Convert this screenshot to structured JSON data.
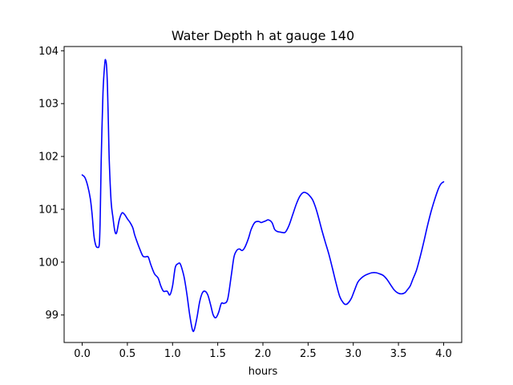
{
  "chart_data": {
    "type": "line",
    "title": "Water Depth h at gauge 140",
    "xlabel": "hours",
    "ylabel": "",
    "xlim": [
      -0.2,
      4.2
    ],
    "ylim": [
      98.48,
      104.08
    ],
    "x_ticks": [
      0.0,
      0.5,
      1.0,
      1.5,
      2.0,
      2.5,
      3.0,
      3.5,
      4.0
    ],
    "x_tick_labels": [
      "0.0",
      "0.5",
      "1.0",
      "1.5",
      "2.0",
      "2.5",
      "3.0",
      "3.5",
      "4.0"
    ],
    "y_ticks": [
      99,
      100,
      101,
      102,
      103,
      104
    ],
    "y_tick_labels": [
      "99",
      "100",
      "101",
      "102",
      "103",
      "104"
    ],
    "grid": false,
    "legend": "none",
    "series": [
      {
        "color": "#0000ff",
        "x": [
          0.0,
          0.03,
          0.06,
          0.09,
          0.11,
          0.13,
          0.15,
          0.17,
          0.19,
          0.2,
          0.21,
          0.23,
          0.25,
          0.26,
          0.27,
          0.28,
          0.29,
          0.3,
          0.32,
          0.34,
          0.36,
          0.38,
          0.41,
          0.44,
          0.47,
          0.5,
          0.53,
          0.56,
          0.58,
          0.6,
          0.63,
          0.67,
          0.7,
          0.73,
          0.76,
          0.8,
          0.84,
          0.87,
          0.9,
          0.94,
          0.97,
          1.0,
          1.03,
          1.06,
          1.08,
          1.1,
          1.13,
          1.16,
          1.19,
          1.22,
          1.24,
          1.27,
          1.3,
          1.33,
          1.36,
          1.39,
          1.42,
          1.45,
          1.48,
          1.51,
          1.54,
          1.57,
          1.61,
          1.65,
          1.68,
          1.71,
          1.74,
          1.77,
          1.8,
          1.84,
          1.87,
          1.91,
          1.95,
          1.98,
          2.0,
          2.03,
          2.06,
          2.1,
          2.13,
          2.16,
          2.19,
          2.22,
          2.25,
          2.29,
          2.33,
          2.37,
          2.41,
          2.45,
          2.49,
          2.52,
          2.55,
          2.58,
          2.61,
          2.65,
          2.69,
          2.73,
          2.77,
          2.81,
          2.85,
          2.89,
          2.92,
          2.95,
          2.98,
          3.01,
          3.05,
          3.09,
          3.13,
          3.17,
          3.21,
          3.25,
          3.29,
          3.33,
          3.37,
          3.41,
          3.45,
          3.49,
          3.53,
          3.57,
          3.6,
          3.63,
          3.66,
          3.7,
          3.74,
          3.78,
          3.82,
          3.86,
          3.9,
          3.94,
          3.97,
          4.0
        ],
        "y": [
          101.65,
          101.6,
          101.45,
          101.2,
          100.9,
          100.5,
          100.32,
          100.28,
          100.35,
          100.9,
          101.9,
          103.2,
          103.76,
          103.82,
          103.7,
          103.3,
          102.6,
          101.9,
          101.15,
          100.85,
          100.6,
          100.55,
          100.8,
          100.93,
          100.9,
          100.82,
          100.75,
          100.65,
          100.52,
          100.42,
          100.28,
          100.12,
          100.1,
          100.1,
          99.95,
          99.78,
          99.7,
          99.55,
          99.45,
          99.45,
          99.38,
          99.55,
          99.9,
          99.97,
          99.98,
          99.9,
          99.7,
          99.38,
          99.0,
          98.72,
          98.72,
          98.95,
          99.25,
          99.42,
          99.45,
          99.38,
          99.2,
          99.0,
          98.95,
          99.05,
          99.22,
          99.22,
          99.3,
          99.75,
          100.1,
          100.22,
          100.25,
          100.22,
          100.28,
          100.45,
          100.62,
          100.75,
          100.77,
          100.75,
          100.76,
          100.78,
          100.8,
          100.75,
          100.62,
          100.58,
          100.57,
          100.56,
          100.57,
          100.7,
          100.9,
          101.1,
          101.25,
          101.32,
          101.3,
          101.25,
          101.18,
          101.05,
          100.88,
          100.62,
          100.38,
          100.15,
          99.88,
          99.6,
          99.35,
          99.23,
          99.2,
          99.24,
          99.32,
          99.45,
          99.62,
          99.7,
          99.75,
          99.78,
          99.8,
          99.8,
          99.78,
          99.75,
          99.68,
          99.58,
          99.48,
          99.42,
          99.4,
          99.42,
          99.48,
          99.55,
          99.68,
          99.85,
          100.1,
          100.38,
          100.68,
          100.95,
          101.18,
          101.38,
          101.48,
          101.52
        ]
      }
    ]
  }
}
